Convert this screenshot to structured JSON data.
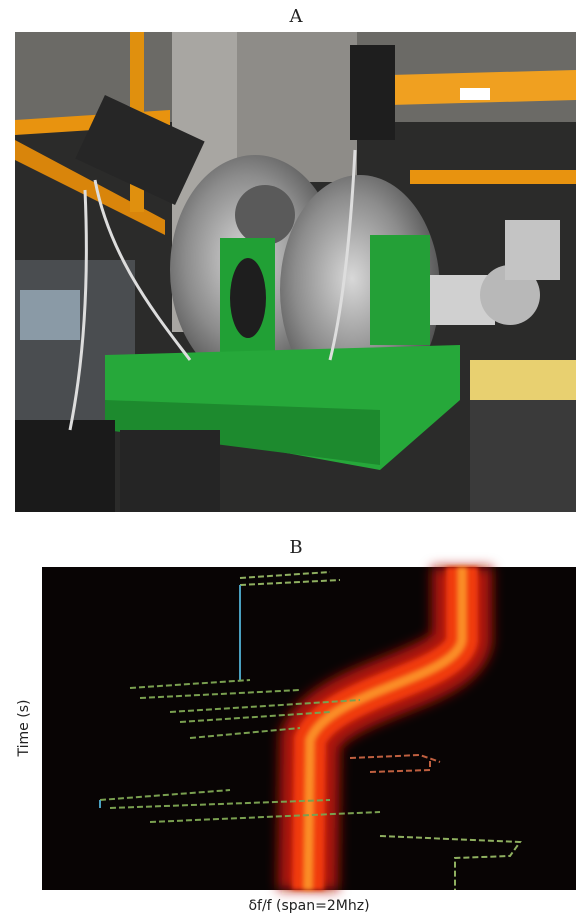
{
  "panels": [
    {
      "label": "A"
    },
    {
      "label": "B",
      "y_label": "Time (s)",
      "x_label": "δf/f (span=2Mhz)"
    }
  ]
}
